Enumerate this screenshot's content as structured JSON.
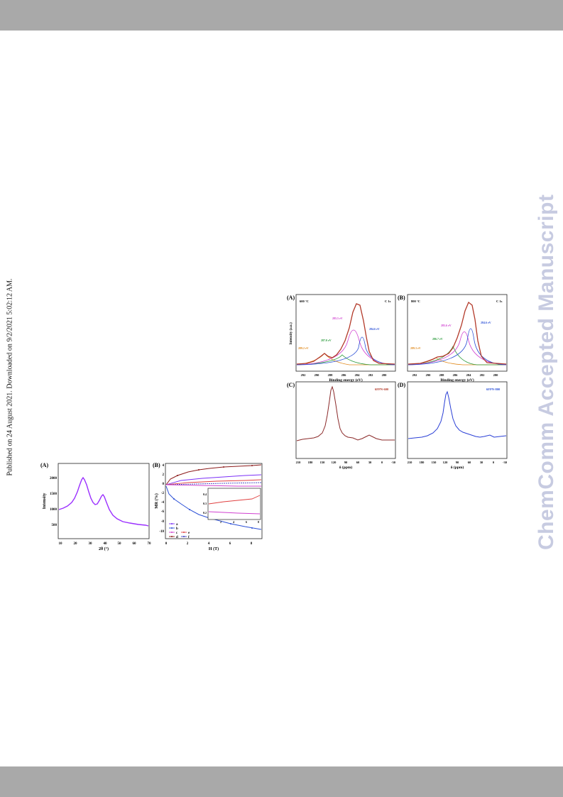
{
  "side_note": "Published on 24 August 2021. Downloaded on 9/2/2021 5:02:12 AM.",
  "watermark": "ChemComm Accepted Manuscript",
  "figure_xrd_mr": {
    "panel_a": {
      "label": "(A)",
      "ylabel": "Intensity",
      "xlabel": "2θ (°)",
      "xticks": [
        "10",
        "20",
        "30",
        "40",
        "50",
        "60",
        "70"
      ],
      "yticks": [
        "500",
        "1000",
        "1500",
        "2000"
      ],
      "line_color": "#9b30ff"
    },
    "panel_b": {
      "label": "(B)",
      "ylabel": "MR (%)",
      "xlabel": "H (T)",
      "xticks": [
        "0",
        "2",
        "4",
        "6",
        "8"
      ],
      "yticks": [
        "4",
        "2",
        "0",
        "-2",
        "-4",
        "-6",
        "-8",
        "-10"
      ],
      "legend": [
        "a",
        "b",
        "c",
        "d",
        "e",
        "f"
      ],
      "inset_yticks": [
        "0.4",
        "0.3",
        "0.2"
      ],
      "inset_xticks": [
        "2",
        "4",
        "6",
        "8"
      ]
    }
  },
  "figure_xps_nmr": {
    "panel_a": {
      "label": "(A)",
      "temp": "600 °C",
      "tag": "C 1s",
      "ylabel": "Intensity (a.u.)",
      "xlabel": "Binding energy (eV)",
      "xticks": [
        "292",
        "290",
        "288",
        "286",
        "284",
        "282",
        "280"
      ],
      "peaks": [
        "289.2 eV",
        "287.0 eV",
        "285.5 eV",
        "284.6 eV"
      ]
    },
    "panel_b": {
      "label": "(B)",
      "temp": "800 °C",
      "tag": "C 1s",
      "xlabel": "Binding energy (eV)",
      "xticks": [
        "292",
        "290",
        "288",
        "286",
        "284",
        "282",
        "280"
      ],
      "peaks": [
        "289.3 eV",
        "286.7 eV",
        "285.6 eV",
        "284.6 eV"
      ]
    },
    "panel_c": {
      "label": "(C)",
      "tag": "6FPN-600",
      "xlabel": "δ (ppm)",
      "xticks": [
        "210",
        "180",
        "150",
        "120",
        "90",
        "60",
        "30",
        "0",
        "-30"
      ]
    },
    "panel_d": {
      "label": "(D)",
      "tag": "6FPN-800",
      "xlabel": "δ (ppm)",
      "xticks": [
        "210",
        "180",
        "150",
        "120",
        "90",
        "60",
        "30",
        "0",
        "-30"
      ]
    }
  }
}
